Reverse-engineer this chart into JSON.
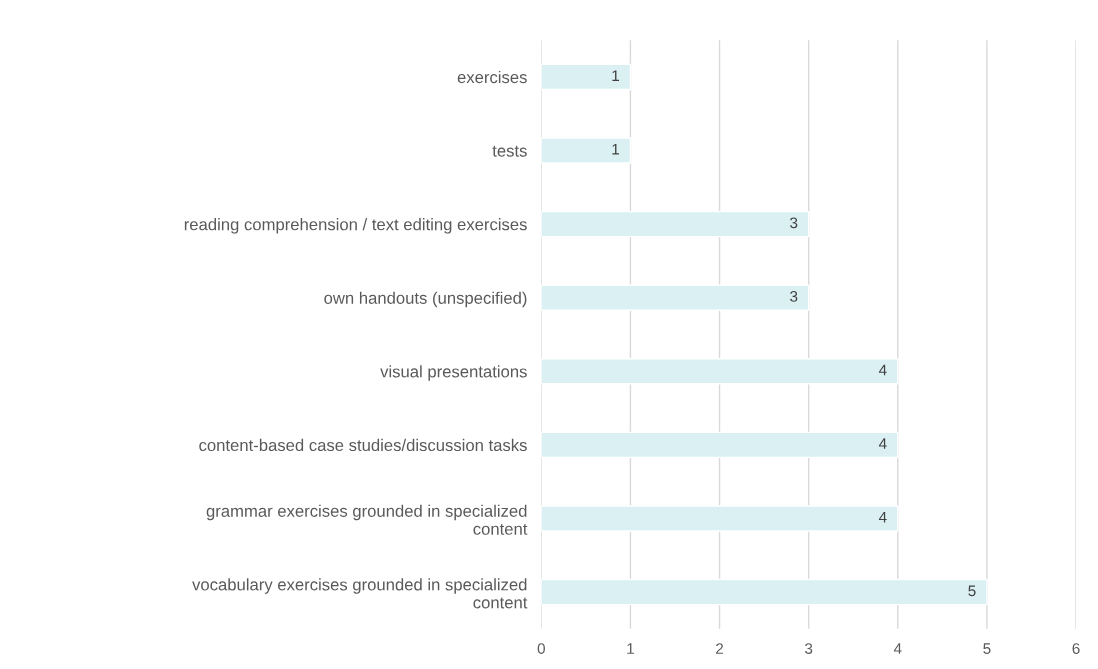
{
  "chart_data": {
    "type": "bar",
    "orientation": "horizontal",
    "categories": [
      "exercises",
      "tests",
      "reading comprehension / text editing exercises",
      "own handouts (unspecified)",
      "visual presentations",
      "content-based case studies/discussion tasks",
      "grammar exercises grounded in specialized\ncontent",
      "vocabulary exercises grounded in specialized\ncontent"
    ],
    "values": [
      1,
      1,
      3,
      3,
      4,
      4,
      4,
      5
    ],
    "color": "#daf0f3",
    "xlim": [
      0,
      6
    ],
    "xticks": [
      0,
      1,
      2,
      3,
      4,
      5,
      6
    ],
    "grid": "x",
    "data_labels": true,
    "legend": false
  }
}
